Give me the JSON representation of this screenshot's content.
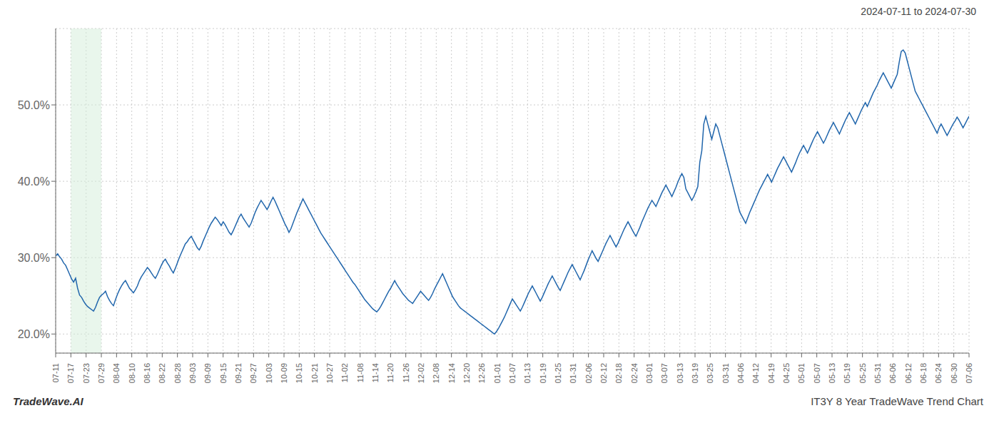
{
  "chart_data": {
    "type": "line",
    "title": "2024-07-11 to 2024-07-30",
    "annotations": [
      "TradeWave.AI",
      "IT3Y 8 Year TradeWave Trend Chart"
    ],
    "color": "#2166ac",
    "grid": true,
    "ylim": [
      17.5,
      60.0
    ],
    "yticks": [
      {
        "value": 20.0,
        "label": "20.0%"
      },
      {
        "value": 30.0,
        "label": "30.0%"
      },
      {
        "value": 40.0,
        "label": "40.0%"
      },
      {
        "value": 50.0,
        "label": "50.0%"
      }
    ],
    "xlim": [
      0,
      458
    ],
    "xticks": [
      {
        "value": 0,
        "label": "07-11"
      },
      {
        "value": 7.6333,
        "label": "07-17"
      },
      {
        "value": 15.2667,
        "label": "07-23"
      },
      {
        "value": 22.9,
        "label": "07-29"
      },
      {
        "value": 30.5333,
        "label": "08-04"
      },
      {
        "value": 38.1667,
        "label": "08-10"
      },
      {
        "value": 45.8,
        "label": "08-16"
      },
      {
        "value": 53.4333,
        "label": "08-22"
      },
      {
        "value": 61.0667,
        "label": "08-28"
      },
      {
        "value": 68.7,
        "label": "09-03"
      },
      {
        "value": 76.3333,
        "label": "09-09"
      },
      {
        "value": 83.9667,
        "label": "09-15"
      },
      {
        "value": 91.6,
        "label": "09-21"
      },
      {
        "value": 99.2333,
        "label": "09-27"
      },
      {
        "value": 106.8667,
        "label": "10-03"
      },
      {
        "value": 114.5,
        "label": "10-09"
      },
      {
        "value": 122.1333,
        "label": "10-15"
      },
      {
        "value": 129.7667,
        "label": "10-21"
      },
      {
        "value": 137.4,
        "label": "10-27"
      },
      {
        "value": 145.0333,
        "label": "11-02"
      },
      {
        "value": 152.6667,
        "label": "11-08"
      },
      {
        "value": 160.3,
        "label": "11-14"
      },
      {
        "value": 167.9333,
        "label": "11-20"
      },
      {
        "value": 175.5667,
        "label": "11-26"
      },
      {
        "value": 183.2,
        "label": "12-02"
      },
      {
        "value": 190.8333,
        "label": "12-08"
      },
      {
        "value": 198.4667,
        "label": "12-14"
      },
      {
        "value": 206.1,
        "label": "12-20"
      },
      {
        "value": 213.7333,
        "label": "12-26"
      },
      {
        "value": 221.3667,
        "label": "01-01"
      },
      {
        "value": 229,
        "label": "01-07"
      },
      {
        "value": 236.6333,
        "label": "01-13"
      },
      {
        "value": 244.2667,
        "label": "01-19"
      },
      {
        "value": 251.9,
        "label": "01-25"
      },
      {
        "value": 259.5333,
        "label": "01-31"
      },
      {
        "value": 267.1667,
        "label": "02-06"
      },
      {
        "value": 274.8,
        "label": "02-12"
      },
      {
        "value": 282.4333,
        "label": "02-18"
      },
      {
        "value": 290.0667,
        "label": "02-24"
      },
      {
        "value": 297.7,
        "label": "03-01"
      },
      {
        "value": 305.3333,
        "label": "03-07"
      },
      {
        "value": 312.9667,
        "label": "03-13"
      },
      {
        "value": 320.6,
        "label": "03-19"
      },
      {
        "value": 328.2333,
        "label": "03-25"
      },
      {
        "value": 335.8667,
        "label": "03-31"
      },
      {
        "value": 343.5,
        "label": "04-06"
      },
      {
        "value": 351.1333,
        "label": "04-12"
      },
      {
        "value": 358.7667,
        "label": "04-19"
      },
      {
        "value": 366.4,
        "label": "04-25"
      },
      {
        "value": 374.0333,
        "label": "05-01"
      },
      {
        "value": 381.6667,
        "label": "05-07"
      },
      {
        "value": 389.3,
        "label": "05-13"
      },
      {
        "value": 396.9333,
        "label": "05-19"
      },
      {
        "value": 404.5667,
        "label": "05-25"
      },
      {
        "value": 412.2,
        "label": "05-31"
      },
      {
        "value": 419.8333,
        "label": "06-06"
      },
      {
        "value": 427.4667,
        "label": "06-12"
      },
      {
        "value": 435.1,
        "label": "06-18"
      },
      {
        "value": 442.7333,
        "label": "06-24"
      },
      {
        "value": 450.3667,
        "label": "06-30"
      },
      {
        "value": 458,
        "label": "07-06"
      }
    ],
    "highlight": {
      "x": [
        7.6333,
        22.9
      ],
      "color": "#d4edda"
    },
    "values": [
      30.2,
      30.5,
      30.1,
      29.8,
      29.3,
      29.0,
      28.4,
      27.8,
      27.2,
      26.8,
      27.3,
      26.0,
      25.1,
      24.8,
      24.3,
      23.9,
      23.6,
      23.4,
      23.2,
      23.0,
      23.5,
      24.2,
      24.8,
      25.1,
      25.3,
      25.6,
      24.9,
      24.4,
      24.0,
      23.7,
      24.5,
      25.2,
      25.8,
      26.3,
      26.7,
      27.0,
      26.5,
      26.0,
      25.7,
      25.4,
      25.8,
      26.3,
      27.0,
      27.5,
      27.9,
      28.3,
      28.7,
      28.4,
      28.0,
      27.6,
      27.3,
      27.8,
      28.4,
      29.0,
      29.5,
      29.8,
      29.3,
      28.9,
      28.4,
      28.0,
      28.6,
      29.3,
      30.0,
      30.6,
      31.2,
      31.8,
      32.1,
      32.5,
      32.8,
      32.3,
      31.8,
      31.3,
      31.0,
      31.5,
      32.2,
      32.8,
      33.4,
      34.0,
      34.5,
      34.9,
      35.3,
      35.0,
      34.6,
      34.2,
      34.7,
      34.3,
      33.8,
      33.3,
      33.0,
      33.5,
      34.1,
      34.7,
      35.3,
      35.7,
      35.2,
      34.8,
      34.4,
      34.0,
      34.5,
      35.2,
      35.9,
      36.5,
      37.0,
      37.5,
      37.1,
      36.7,
      36.3,
      36.8,
      37.4,
      37.9,
      37.4,
      36.8,
      36.2,
      35.6,
      35.0,
      34.4,
      33.9,
      33.3,
      33.8,
      34.5,
      35.2,
      35.9,
      36.5,
      37.1,
      37.7,
      37.2,
      36.7,
      36.2,
      35.7,
      35.2,
      34.7,
      34.2,
      33.7,
      33.2,
      32.8,
      32.4,
      32.0,
      31.6,
      31.2,
      30.8,
      30.4,
      30.0,
      29.6,
      29.2,
      28.8,
      28.4,
      28.0,
      27.6,
      27.2,
      26.8,
      26.5,
      26.1,
      25.7,
      25.3,
      24.9,
      24.5,
      24.2,
      23.9,
      23.6,
      23.3,
      23.1,
      22.9,
      23.2,
      23.6,
      24.1,
      24.6,
      25.1,
      25.6,
      26.0,
      26.5,
      27.0,
      26.5,
      26.1,
      25.7,
      25.3,
      25.0,
      24.7,
      24.4,
      24.2,
      24.0,
      24.4,
      24.8,
      25.2,
      25.6,
      25.3,
      25.0,
      24.7,
      24.4,
      24.8,
      25.3,
      25.9,
      26.4,
      26.9,
      27.4,
      27.9,
      27.3,
      26.7,
      26.1,
      25.5,
      24.9,
      24.5,
      24.1,
      23.7,
      23.4,
      23.2,
      23.0,
      22.8,
      22.6,
      22.4,
      22.2,
      22.0,
      21.8,
      21.6,
      21.4,
      21.2,
      21.0,
      20.8,
      20.6,
      20.4,
      20.2,
      20.0,
      20.3,
      20.7,
      21.2,
      21.7,
      22.2,
      22.8,
      23.4,
      24.0,
      24.6,
      24.2,
      23.8,
      23.4,
      23.0,
      23.5,
      24.1,
      24.7,
      25.3,
      25.8,
      26.3,
      25.8,
      25.3,
      24.8,
      24.3,
      24.8,
      25.4,
      26.0,
      26.6,
      27.1,
      27.6,
      27.1,
      26.6,
      26.1,
      25.7,
      26.3,
      26.9,
      27.5,
      28.1,
      28.6,
      29.1,
      28.6,
      28.1,
      27.6,
      27.1,
      27.7,
      28.3,
      29.0,
      29.7,
      30.3,
      30.9,
      30.4,
      29.9,
      29.5,
      30.1,
      30.7,
      31.3,
      31.9,
      32.4,
      32.9,
      32.4,
      31.9,
      31.4,
      31.9,
      32.5,
      33.1,
      33.7,
      34.2,
      34.7,
      34.2,
      33.7,
      33.2,
      32.8,
      33.4,
      34.0,
      34.7,
      35.3,
      35.9,
      36.5,
      37.0,
      37.5,
      37.1,
      36.7,
      37.3,
      37.9,
      38.5,
      39.0,
      39.5,
      39.0,
      38.5,
      38.0,
      38.6,
      39.2,
      39.9,
      40.5,
      41.0,
      40.5,
      39.0,
      38.5,
      38.0,
      37.5,
      38.0,
      38.6,
      39.3,
      42.5,
      44.0,
      47.5,
      48.5,
      47.5,
      46.5,
      45.5,
      46.5,
      47.5,
      47.0,
      46.0,
      45.0,
      44.0,
      43.0,
      42.0,
      41.0,
      40.0,
      39.0,
      38.0,
      37.0,
      36.0,
      35.5,
      35.0,
      34.5,
      35.2,
      35.9,
      36.5,
      37.1,
      37.7,
      38.3,
      38.9,
      39.4,
      39.9,
      40.4,
      40.9,
      40.4,
      39.9,
      40.5,
      41.1,
      41.7,
      42.2,
      42.7,
      43.2,
      42.7,
      42.2,
      41.7,
      41.2,
      41.8,
      42.4,
      43.1,
      43.7,
      44.2,
      44.7,
      44.2,
      43.7,
      44.3,
      44.9,
      45.5,
      46.0,
      46.5,
      46.0,
      45.5,
      45.0,
      45.5,
      46.1,
      46.7,
      47.2,
      47.7,
      47.2,
      46.7,
      46.2,
      46.8,
      47.4,
      48.0,
      48.5,
      49.0,
      48.5,
      48.0,
      47.5,
      48.1,
      48.7,
      49.3,
      49.8,
      50.3,
      49.8,
      50.4,
      51.0,
      51.6,
      52.1,
      52.6,
      53.2,
      53.7,
      54.2,
      53.7,
      53.2,
      52.7,
      52.2,
      52.8,
      53.4,
      54.0,
      55.6,
      57.0,
      57.2,
      56.8,
      55.8,
      54.8,
      53.8,
      52.8,
      51.8,
      51.3,
      50.8,
      50.3,
      49.8,
      49.3,
      48.8,
      48.3,
      47.8,
      47.3,
      46.8,
      46.3,
      47.0,
      47.5,
      47.0,
      46.5,
      46.0,
      46.5,
      47.0,
      47.5,
      47.9,
      48.4,
      48.0,
      47.5,
      47.0,
      47.5,
      48.0,
      48.5
    ]
  }
}
